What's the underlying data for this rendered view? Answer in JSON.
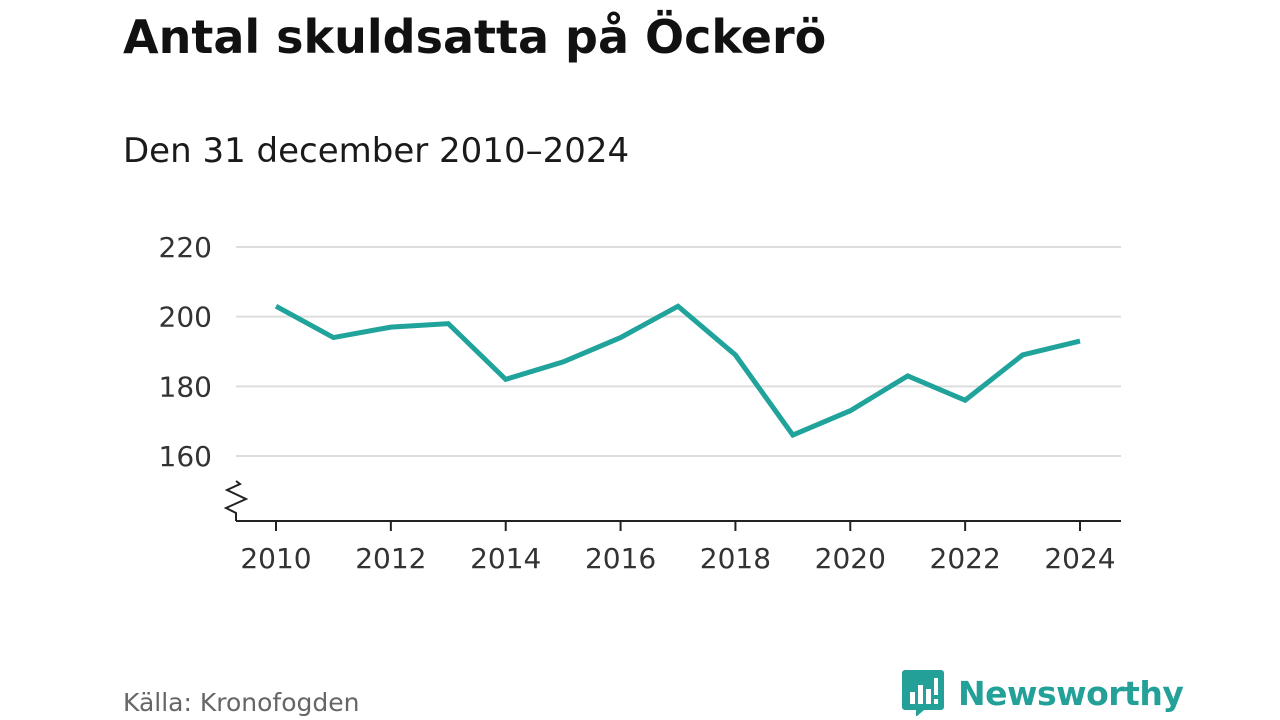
{
  "header": {
    "title": "Antal skuldsatta på Öckerö",
    "subtitle": "Den 31 december 2010–2024"
  },
  "footer": {
    "source": "Källa: Kronofogden",
    "brand": "Newsworthy",
    "logo_icon": "newsworthy-logo-icon"
  },
  "colors": {
    "line": "#1fa39a",
    "grid": "#dddddd",
    "axis": "#222222",
    "brand": "#23a198"
  },
  "chart_data": {
    "type": "line",
    "title": "Antal skuldsatta på Öckerö",
    "subtitle": "Den 31 december 2010–2024",
    "xlabel": "",
    "ylabel": "",
    "x": [
      2010,
      2011,
      2012,
      2013,
      2014,
      2015,
      2016,
      2017,
      2018,
      2019,
      2020,
      2021,
      2022,
      2023,
      2024
    ],
    "series": [
      {
        "name": "Antal skuldsatta",
        "values": [
          203,
          194,
          197,
          198,
          182,
          187,
          194,
          203,
          189,
          166,
          173,
          183,
          176,
          189,
          193
        ]
      }
    ],
    "x_ticks": [
      "2010",
      "2012",
      "2014",
      "2016",
      "2018",
      "2020",
      "2022",
      "2024"
    ],
    "y_ticks": [
      "160",
      "180",
      "200",
      "220"
    ],
    "xlim": [
      2010,
      2024
    ],
    "ylim": [
      160,
      220
    ],
    "grid": true,
    "axis_break": true,
    "legend": "none"
  }
}
